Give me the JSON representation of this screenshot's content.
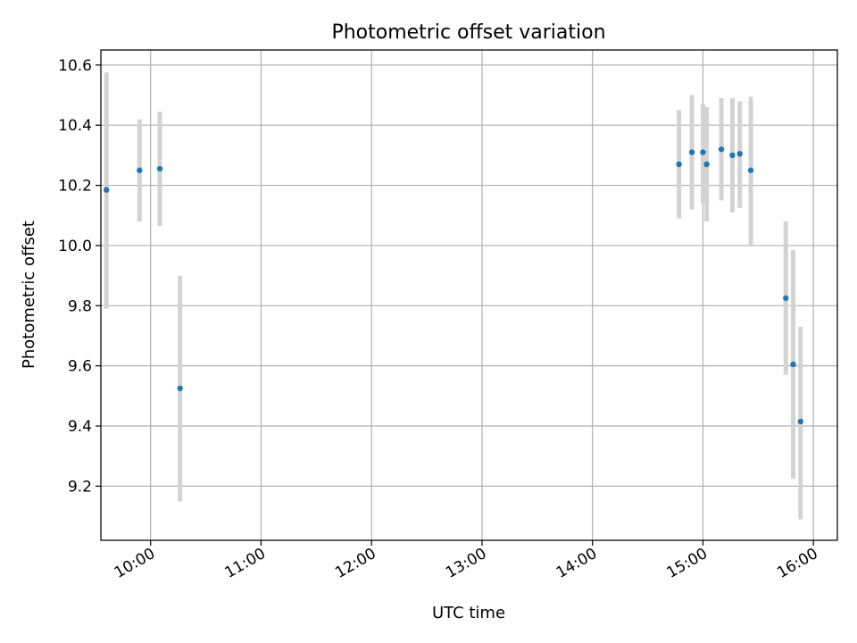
{
  "chart_data": {
    "type": "scatter",
    "title": "Photometric offset variation",
    "xlabel": "UTC time",
    "ylabel": "Photometric offset",
    "grid": true,
    "xlim": [
      "09:33",
      "16:13"
    ],
    "ylim": [
      9.02,
      10.65
    ],
    "xticks": [
      "10:00",
      "11:00",
      "12:00",
      "13:00",
      "14:00",
      "15:00",
      "16:00"
    ],
    "yticks": [
      "9.2",
      "9.4",
      "9.6",
      "9.8",
      "10.0",
      "10.2",
      "10.4",
      "10.6"
    ],
    "points": [
      {
        "x": "09:36",
        "y": 10.185,
        "yerr_low": 9.79,
        "yerr_high": 10.575
      },
      {
        "x": "09:54",
        "y": 10.25,
        "yerr_low": 10.08,
        "yerr_high": 10.42
      },
      {
        "x": "10:05",
        "y": 10.255,
        "yerr_low": 10.065,
        "yerr_high": 10.445
      },
      {
        "x": "10:16",
        "y": 9.525,
        "yerr_low": 9.15,
        "yerr_high": 9.9
      },
      {
        "x": "14:47",
        "y": 10.27,
        "yerr_low": 10.09,
        "yerr_high": 10.45
      },
      {
        "x": "14:54",
        "y": 10.31,
        "yerr_low": 10.12,
        "yerr_high": 10.5
      },
      {
        "x": "15:00",
        "y": 10.31,
        "yerr_low": 10.14,
        "yerr_high": 10.47
      },
      {
        "x": "15:02",
        "y": 10.27,
        "yerr_low": 10.08,
        "yerr_high": 10.46
      },
      {
        "x": "15:10",
        "y": 10.32,
        "yerr_low": 10.15,
        "yerr_high": 10.49
      },
      {
        "x": "15:16",
        "y": 10.3,
        "yerr_low": 10.11,
        "yerr_high": 10.49
      },
      {
        "x": "15:20",
        "y": 10.305,
        "yerr_low": 10.125,
        "yerr_high": 10.48
      },
      {
        "x": "15:26",
        "y": 10.25,
        "yerr_low": 10.0,
        "yerr_high": 10.495
      },
      {
        "x": "15:45",
        "y": 9.825,
        "yerr_low": 9.57,
        "yerr_high": 10.08
      },
      {
        "x": "15:49",
        "y": 9.605,
        "yerr_low": 9.225,
        "yerr_high": 9.985
      },
      {
        "x": "15:53",
        "y": 9.415,
        "yerr_low": 9.09,
        "yerr_high": 9.73
      }
    ],
    "colors": {
      "marker": "#1f77b4",
      "errorbar": "#d3d3d3",
      "grid": "#b0b0b0",
      "axes": "#000000"
    }
  }
}
